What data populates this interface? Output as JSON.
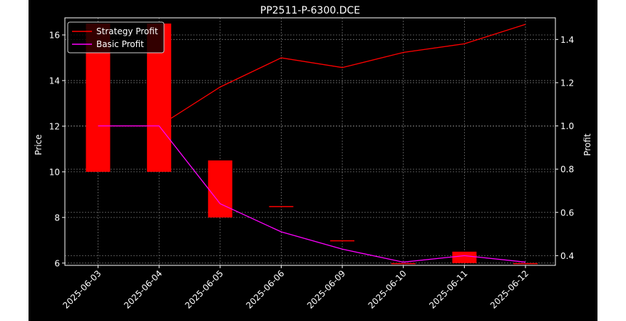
{
  "chart_data": {
    "type": "candlestick+line",
    "title": "PP2511-P-6300.DCE",
    "xlabel": "",
    "ylabel_left": "Price",
    "ylabel_right": "Profit",
    "categories": [
      "2025-06-03",
      "2025-06-04",
      "2025-06-05",
      "2025-06-06",
      "2025-06-09",
      "2025-06-10",
      "2025-06-11",
      "2025-06-12"
    ],
    "ylim_left": [
      5.9,
      16.75
    ],
    "ylim_right": [
      0.355,
      1.5
    ],
    "yticks_left": [
      6,
      8,
      10,
      12,
      14,
      16
    ],
    "yticks_right": [
      0.4,
      0.6,
      0.8,
      1.0,
      1.2,
      1.4
    ],
    "grid": true,
    "legend_position": "upper-left",
    "candles": [
      {
        "date": "2025-06-03",
        "low": 10.0,
        "high": 16.5
      },
      {
        "date": "2025-06-04",
        "low": 10.0,
        "high": 16.5
      },
      {
        "date": "2025-06-05",
        "low": 8.0,
        "high": 10.5
      },
      {
        "date": "2025-06-06",
        "low": 8.5,
        "high": 8.5
      },
      {
        "date": "2025-06-09",
        "low": 7.0,
        "high": 7.0
      },
      {
        "date": "2025-06-10",
        "low": 6.0,
        "high": 6.0
      },
      {
        "date": "2025-06-11",
        "low": 6.0,
        "high": 6.5
      },
      {
        "date": "2025-06-12",
        "low": 6.0,
        "high": 6.0
      }
    ],
    "series": [
      {
        "name": "Strategy Profit",
        "color": "#ff0000",
        "axis": "right",
        "values": [
          1.0,
          1.0,
          1.18,
          1.315,
          1.27,
          1.34,
          1.38,
          1.47
        ]
      },
      {
        "name": "Basic Profit",
        "color": "#ff00ff",
        "axis": "right",
        "values": [
          1.0,
          1.0,
          0.64,
          0.51,
          0.43,
          0.37,
          0.4,
          0.37
        ]
      }
    ],
    "colors": {
      "background": "#000000",
      "candle": "#ff0000",
      "grid": "#888888",
      "axes": "#ffffff"
    }
  }
}
